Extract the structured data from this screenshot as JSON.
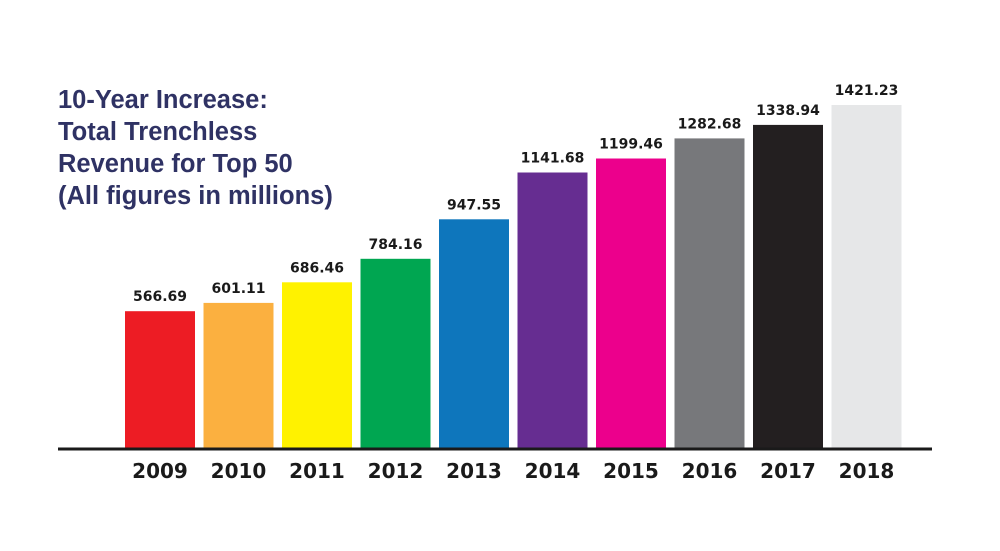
{
  "chart_data": {
    "type": "bar",
    "title_lines": [
      "10-Year Increase:",
      "Total Trenchless",
      "Revenue for Top 50",
      "(All figures in millions)"
    ],
    "categories": [
      "2009",
      "2010",
      "2011",
      "2012",
      "2013",
      "2014",
      "2015",
      "2016",
      "2017",
      "2018"
    ],
    "values": [
      566.69,
      601.11,
      686.46,
      784.16,
      947.55,
      1141.68,
      1199.46,
      1282.68,
      1338.94,
      1421.23
    ],
    "value_labels": [
      "566.69",
      "601.11",
      "686.46",
      "784.16",
      "947.55",
      "1141.68",
      "1199.46",
      "1282.68",
      "1338.94",
      "1421.23"
    ],
    "colors": [
      "#ed1c24",
      "#fbb040",
      "#fff200",
      "#00a651",
      "#0e76bc",
      "#662d91",
      "#ec008c",
      "#77787b",
      "#231f20",
      "#e6e7e8"
    ],
    "ylim": [
      0,
      1421.23
    ],
    "grid": false,
    "legend": "none"
  }
}
